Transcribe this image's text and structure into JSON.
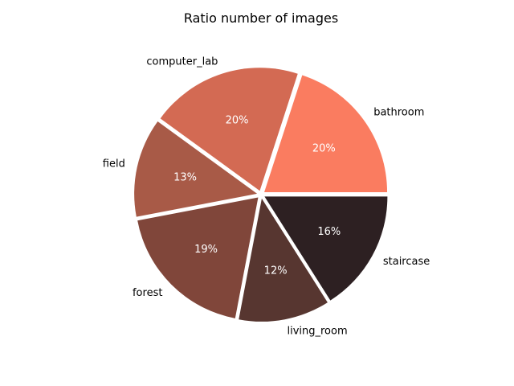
{
  "chart_data": {
    "type": "pie",
    "title": "Ratio number of images",
    "categories": [
      "bathroom",
      "computer_lab",
      "field",
      "forest",
      "living_room",
      "staircase"
    ],
    "values": [
      20,
      20,
      13,
      19,
      12,
      16
    ],
    "value_labels": [
      "20%",
      "20%",
      "13%",
      "19%",
      "12%",
      "16%"
    ],
    "colors": [
      "#fa7c60",
      "#d36a53",
      "#a85a47",
      "#80463a",
      "#573630",
      "#2d2022"
    ],
    "start_angle_deg": 0,
    "direction": "counterclockwise",
    "exploded": true,
    "legend": "none"
  }
}
